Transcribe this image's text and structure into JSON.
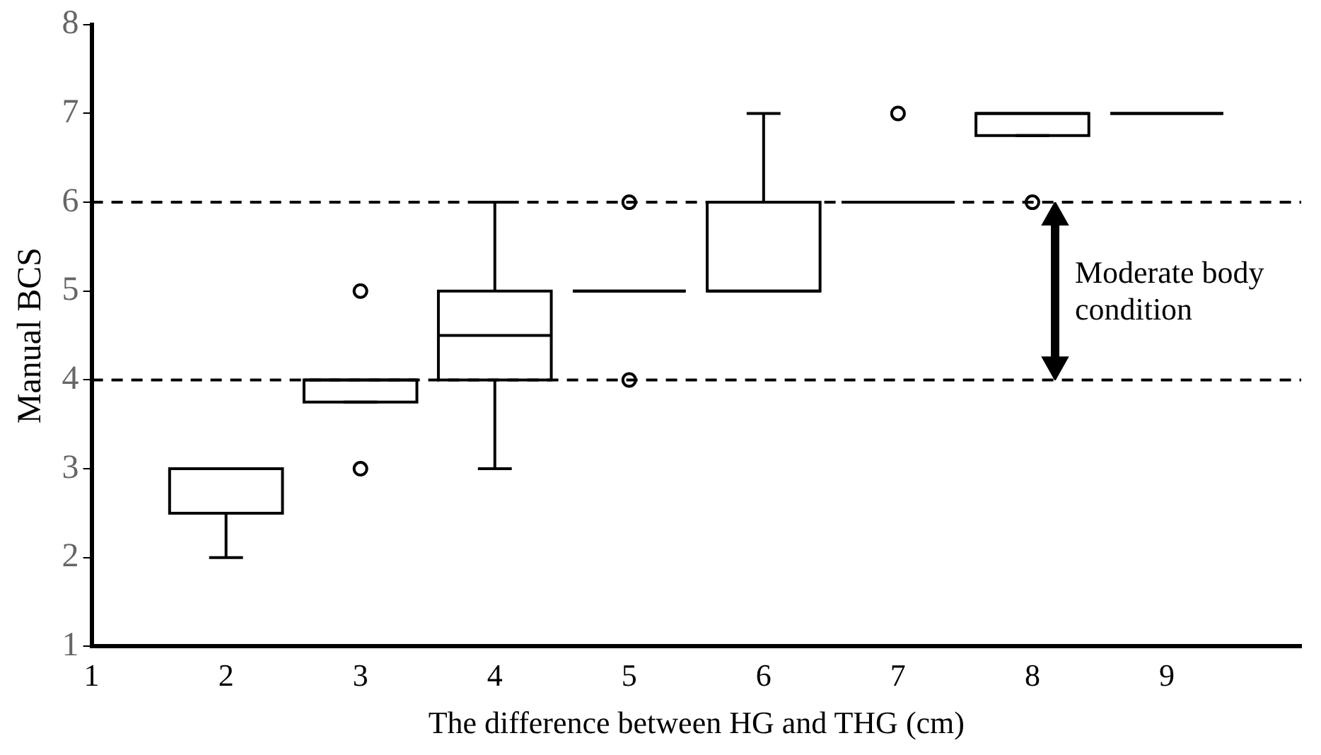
{
  "chart_data": {
    "type": "box",
    "xlabel": "The difference between HG and THG (cm)",
    "ylabel": "Manual BCS",
    "categories": [
      "1",
      "2",
      "3",
      "4",
      "5",
      "6",
      "7",
      "8",
      "9",
      null
    ],
    "boxes": [
      null,
      {
        "low": 2,
        "q1": 2.5,
        "median": 3,
        "q3": 3,
        "high": 3
      },
      {
        "low": 3.75,
        "q1": 3.75,
        "median": 4,
        "q3": 4,
        "high": 4,
        "outliers": [
          3,
          5
        ]
      },
      {
        "low": 3,
        "q1": 4,
        "median": 4.5,
        "q3": 5,
        "high": 6
      },
      {
        "low": 5,
        "q1": 5,
        "median": 5,
        "q3": 5,
        "high": 5,
        "outliers": [
          4,
          6
        ]
      },
      {
        "low": 5,
        "q1": 5,
        "median": 5,
        "q3": 6,
        "high": 7
      },
      {
        "low": 6,
        "q1": 6,
        "median": 6,
        "q3": 6,
        "high": 6,
        "outliers": [
          7
        ]
      },
      {
        "low": 6.75,
        "q1": 6.75,
        "median": 7,
        "q3": 7,
        "high": 7,
        "outliers": [
          6
        ]
      },
      {
        "low": 7,
        "q1": 7,
        "median": 7,
        "q3": 7,
        "high": 7
      },
      null
    ],
    "ylim": [
      1,
      8
    ],
    "yticks": [
      1,
      2,
      3,
      4,
      5,
      6,
      7,
      8
    ],
    "grid": false,
    "legend": false,
    "ref_lines": [
      {
        "axis": "y",
        "value": 6,
        "line_style": "dashed",
        "color": "#000000"
      },
      {
        "axis": "y",
        "value": 4,
        "line_style": "dashed",
        "color": "#000000"
      }
    ],
    "annotations": [
      "Moderate body condition"
    ]
  }
}
